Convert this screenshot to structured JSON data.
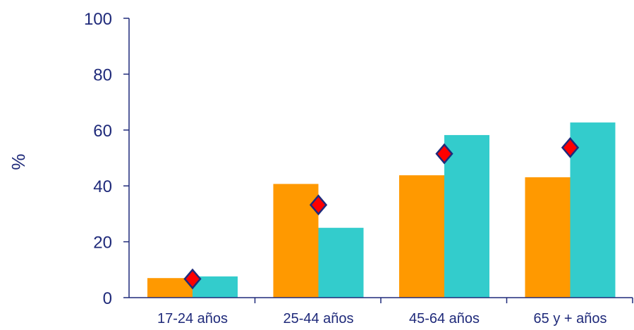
{
  "chart_data": {
    "type": "bar",
    "title": "",
    "xlabel": "",
    "ylabel": "%",
    "ylim": [
      0,
      100
    ],
    "yticks": [
      "0",
      "20",
      "40",
      "60",
      "80",
      "100"
    ],
    "categories": [
      "17-24 años",
      "25-44 años",
      "45-64 años",
      "65 y + años"
    ],
    "series": [
      {
        "values": [
          7,
          40.7,
          43.8,
          43.1
        ],
        "color": "#ff9900",
        "mark": "bar"
      },
      {
        "values": [
          7.6,
          25,
          58.2,
          62.7
        ],
        "color": "#33cccc",
        "mark": "bar"
      },
      {
        "values": [
          6.7,
          33.2,
          51.5,
          53.7
        ],
        "color": "#ff0000",
        "edge_color": "#1f2a7a",
        "mark": "diamond"
      }
    ],
    "grid": false,
    "legend": "none"
  }
}
